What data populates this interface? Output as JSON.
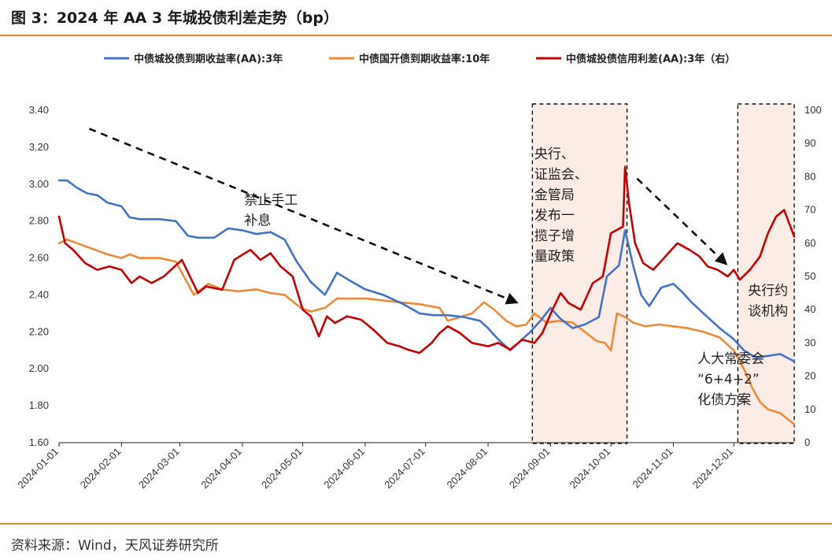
{
  "figure": {
    "title": "图 3：2024 年 AA 3 年城投债利差走势（bp）",
    "source": "资料来源：Wind，天风证券研究所"
  },
  "chart_data": {
    "type": "line",
    "x_ticks": [
      "2024-01-01",
      "2024-02-01",
      "2024-03-01",
      "2024-04-01",
      "2024-05-01",
      "2024-06-01",
      "2024-07-01",
      "2024-08-01",
      "2024-09-01",
      "2024-10-01",
      "2024-11-01",
      "2024-12-01"
    ],
    "x_range": [
      "2024-01-01",
      "2024-12-31"
    ],
    "y_left": {
      "range": [
        1.6,
        3.4
      ],
      "ticks": [
        "1.60",
        "1.80",
        "2.00",
        "2.20",
        "2.40",
        "2.60",
        "2.80",
        "3.00",
        "3.20",
        "3.40"
      ]
    },
    "y_right": {
      "range": [
        0,
        100
      ],
      "ticks": [
        "0",
        "10",
        "20",
        "30",
        "40",
        "50",
        "60",
        "70",
        "80",
        "90",
        "100"
      ]
    },
    "legend_position": "top",
    "series": [
      {
        "name": "中债城投债到期收益率(AA):3年",
        "color": "#4472c4",
        "axis": "left",
        "points": [
          [
            "2024-01-01",
            3.02
          ],
          [
            "2024-01-05",
            3.02
          ],
          [
            "2024-01-10",
            2.98
          ],
          [
            "2024-01-15",
            2.95
          ],
          [
            "2024-01-20",
            2.94
          ],
          [
            "2024-01-25",
            2.9
          ],
          [
            "2024-02-01",
            2.88
          ],
          [
            "2024-02-05",
            2.82
          ],
          [
            "2024-02-10",
            2.81
          ],
          [
            "2024-02-20",
            2.81
          ],
          [
            "2024-02-28",
            2.8
          ],
          [
            "2024-03-05",
            2.72
          ],
          [
            "2024-03-10",
            2.71
          ],
          [
            "2024-03-18",
            2.71
          ],
          [
            "2024-03-25",
            2.76
          ],
          [
            "2024-04-01",
            2.75
          ],
          [
            "2024-04-08",
            2.73
          ],
          [
            "2024-04-15",
            2.74
          ],
          [
            "2024-04-22",
            2.7
          ],
          [
            "2024-04-28",
            2.58
          ],
          [
            "2024-05-05",
            2.47
          ],
          [
            "2024-05-12",
            2.4
          ],
          [
            "2024-05-18",
            2.52
          ],
          [
            "2024-05-24",
            2.48
          ],
          [
            "2024-06-01",
            2.43
          ],
          [
            "2024-06-10",
            2.4
          ],
          [
            "2024-06-20",
            2.35
          ],
          [
            "2024-06-28",
            2.3
          ],
          [
            "2024-07-05",
            2.29
          ],
          [
            "2024-07-12",
            2.29
          ],
          [
            "2024-07-20",
            2.28
          ],
          [
            "2024-07-28",
            2.26
          ],
          [
            "2024-08-01",
            2.22
          ],
          [
            "2024-08-06",
            2.16
          ],
          [
            "2024-08-12",
            2.1
          ],
          [
            "2024-08-17",
            2.15
          ],
          [
            "2024-08-22",
            2.2
          ],
          [
            "2024-08-27",
            2.26
          ],
          [
            "2024-09-01",
            2.33
          ],
          [
            "2024-09-06",
            2.27
          ],
          [
            "2024-09-12",
            2.22
          ],
          [
            "2024-09-18",
            2.24
          ],
          [
            "2024-09-25",
            2.28
          ],
          [
            "2024-09-29",
            2.5
          ],
          [
            "2024-10-05",
            2.56
          ],
          [
            "2024-10-08",
            2.75
          ],
          [
            "2024-10-12",
            2.56
          ],
          [
            "2024-10-16",
            2.4
          ],
          [
            "2024-10-20",
            2.34
          ],
          [
            "2024-10-26",
            2.44
          ],
          [
            "2024-11-01",
            2.46
          ],
          [
            "2024-11-05",
            2.42
          ],
          [
            "2024-11-10",
            2.36
          ],
          [
            "2024-11-16",
            2.3
          ],
          [
            "2024-11-24",
            2.22
          ],
          [
            "2024-12-01",
            2.16
          ],
          [
            "2024-12-06",
            2.1
          ],
          [
            "2024-12-12",
            2.06
          ],
          [
            "2024-12-18",
            2.07
          ],
          [
            "2024-12-24",
            2.08
          ],
          [
            "2024-12-31",
            2.04
          ]
        ]
      },
      {
        "name": "中债国开债到期收益率:10年",
        "color": "#ed8a3c",
        "axis": "left",
        "points": [
          [
            "2024-01-01",
            2.68
          ],
          [
            "2024-01-05",
            2.7
          ],
          [
            "2024-01-10",
            2.68
          ],
          [
            "2024-01-15",
            2.66
          ],
          [
            "2024-01-20",
            2.64
          ],
          [
            "2024-01-25",
            2.62
          ],
          [
            "2024-02-01",
            2.6
          ],
          [
            "2024-02-05",
            2.62
          ],
          [
            "2024-02-10",
            2.6
          ],
          [
            "2024-02-20",
            2.6
          ],
          [
            "2024-02-28",
            2.58
          ],
          [
            "2024-03-04",
            2.48
          ],
          [
            "2024-03-08",
            2.4
          ],
          [
            "2024-03-15",
            2.46
          ],
          [
            "2024-03-22",
            2.43
          ],
          [
            "2024-03-30",
            2.42
          ],
          [
            "2024-04-08",
            2.43
          ],
          [
            "2024-04-15",
            2.41
          ],
          [
            "2024-04-22",
            2.4
          ],
          [
            "2024-04-30",
            2.33
          ],
          [
            "2024-05-05",
            2.31
          ],
          [
            "2024-05-12",
            2.33
          ],
          [
            "2024-05-18",
            2.38
          ],
          [
            "2024-05-26",
            2.38
          ],
          [
            "2024-06-02",
            2.38
          ],
          [
            "2024-06-10",
            2.37
          ],
          [
            "2024-06-18",
            2.36
          ],
          [
            "2024-06-28",
            2.35
          ],
          [
            "2024-07-08",
            2.33
          ],
          [
            "2024-07-12",
            2.26
          ],
          [
            "2024-07-18",
            2.28
          ],
          [
            "2024-07-24",
            2.3
          ],
          [
            "2024-07-30",
            2.36
          ],
          [
            "2024-08-04",
            2.32
          ],
          [
            "2024-08-10",
            2.26
          ],
          [
            "2024-08-15",
            2.23
          ],
          [
            "2024-08-20",
            2.24
          ],
          [
            "2024-08-24",
            2.3
          ],
          [
            "2024-08-30",
            2.25
          ],
          [
            "2024-09-05",
            2.26
          ],
          [
            "2024-09-12",
            2.25
          ],
          [
            "2024-09-18",
            2.2
          ],
          [
            "2024-09-24",
            2.15
          ],
          [
            "2024-09-28",
            2.14
          ],
          [
            "2024-10-01",
            2.1
          ],
          [
            "2024-10-04",
            2.3
          ],
          [
            "2024-10-08",
            2.28
          ],
          [
            "2024-10-12",
            2.25
          ],
          [
            "2024-10-18",
            2.23
          ],
          [
            "2024-10-25",
            2.24
          ],
          [
            "2024-11-01",
            2.23
          ],
          [
            "2024-11-08",
            2.22
          ],
          [
            "2024-11-16",
            2.2
          ],
          [
            "2024-11-24",
            2.17
          ],
          [
            "2024-12-01",
            2.1
          ],
          [
            "2024-12-06",
            2.0
          ],
          [
            "2024-12-10",
            1.9
          ],
          [
            "2024-12-14",
            1.82
          ],
          [
            "2024-12-18",
            1.78
          ],
          [
            "2024-12-24",
            1.76
          ],
          [
            "2024-12-31",
            1.7
          ]
        ]
      },
      {
        "name": "中债城投债信用利差(AA):3年（右）",
        "color": "#c00000",
        "axis": "right",
        "points": [
          [
            "2024-01-01",
            68
          ],
          [
            "2024-01-04",
            60
          ],
          [
            "2024-01-08",
            58
          ],
          [
            "2024-01-14",
            54
          ],
          [
            "2024-01-20",
            52
          ],
          [
            "2024-01-26",
            53
          ],
          [
            "2024-02-01",
            52
          ],
          [
            "2024-02-06",
            48
          ],
          [
            "2024-02-10",
            50
          ],
          [
            "2024-02-16",
            48
          ],
          [
            "2024-02-22",
            50
          ],
          [
            "2024-03-02",
            55
          ],
          [
            "2024-03-06",
            50
          ],
          [
            "2024-03-10",
            45
          ],
          [
            "2024-03-14",
            47
          ],
          [
            "2024-03-22",
            46
          ],
          [
            "2024-03-28",
            55
          ],
          [
            "2024-04-05",
            58
          ],
          [
            "2024-04-10",
            55
          ],
          [
            "2024-04-15",
            57
          ],
          [
            "2024-04-20",
            53
          ],
          [
            "2024-04-26",
            50
          ],
          [
            "2024-05-01",
            40
          ],
          [
            "2024-05-05",
            38
          ],
          [
            "2024-05-09",
            32
          ],
          [
            "2024-05-13",
            38
          ],
          [
            "2024-05-17",
            36
          ],
          [
            "2024-05-23",
            38
          ],
          [
            "2024-05-30",
            37
          ],
          [
            "2024-06-05",
            34
          ],
          [
            "2024-06-12",
            30
          ],
          [
            "2024-06-18",
            29
          ],
          [
            "2024-06-22",
            28
          ],
          [
            "2024-06-28",
            27
          ],
          [
            "2024-07-04",
            30
          ],
          [
            "2024-07-08",
            33
          ],
          [
            "2024-07-12",
            35
          ],
          [
            "2024-07-18",
            33
          ],
          [
            "2024-07-24",
            30
          ],
          [
            "2024-08-01",
            29
          ],
          [
            "2024-08-06",
            30
          ],
          [
            "2024-08-12",
            28
          ],
          [
            "2024-08-18",
            31
          ],
          [
            "2024-08-24",
            30
          ],
          [
            "2024-08-28",
            33
          ],
          [
            "2024-09-02",
            40
          ],
          [
            "2024-09-06",
            45
          ],
          [
            "2024-09-10",
            42
          ],
          [
            "2024-09-16",
            40
          ],
          [
            "2024-09-22",
            48
          ],
          [
            "2024-09-27",
            50
          ],
          [
            "2024-10-01",
            63
          ],
          [
            "2024-10-04",
            64
          ],
          [
            "2024-10-07",
            65
          ],
          [
            "2024-10-08",
            83
          ],
          [
            "2024-10-10",
            72
          ],
          [
            "2024-10-13",
            60
          ],
          [
            "2024-10-17",
            54
          ],
          [
            "2024-10-22",
            52
          ],
          [
            "2024-10-28",
            56
          ],
          [
            "2024-11-03",
            60
          ],
          [
            "2024-11-09",
            58
          ],
          [
            "2024-11-14",
            56
          ],
          [
            "2024-11-18",
            53
          ],
          [
            "2024-11-23",
            52
          ],
          [
            "2024-11-28",
            50
          ],
          [
            "2024-12-01",
            52
          ],
          [
            "2024-12-04",
            49
          ],
          [
            "2024-12-09",
            52
          ],
          [
            "2024-12-14",
            56
          ],
          [
            "2024-12-18",
            63
          ],
          [
            "2024-12-22",
            68
          ],
          [
            "2024-12-26",
            70
          ],
          [
            "2024-12-31",
            62
          ]
        ]
      }
    ],
    "shaded_regions": [
      {
        "from": "2024-08-23",
        "to": "2024-10-09"
      },
      {
        "from": "2024-12-03",
        "to": "2024-12-31"
      }
    ],
    "arrows": [
      {
        "from": [
          "2024-01-16",
          3.3
        ],
        "to": [
          "2024-08-15",
          2.36
        ]
      },
      {
        "from": [
          "2024-10-14",
          3.03
        ],
        "to": [
          "2024-11-27",
          2.57
        ]
      }
    ],
    "annotations": [
      {
        "lines": [
          "禁止手工",
          "补息"
        ],
        "at": [
          "2024-04-02",
          2.89
        ]
      },
      {
        "lines": [
          "央行、",
          "证监会、",
          "金管局",
          "发布一",
          "揽子增",
          "量政策"
        ],
        "at": [
          "2024-08-24",
          3.14
        ]
      },
      {
        "lines": [
          "央行约",
          "谈机构"
        ],
        "at": [
          "2024-12-08",
          2.4
        ]
      },
      {
        "lines": [
          "人大常委会",
          "“6+4+2”",
          "化债方案"
        ],
        "at": [
          "2024-11-13",
          2.03
        ]
      }
    ]
  }
}
